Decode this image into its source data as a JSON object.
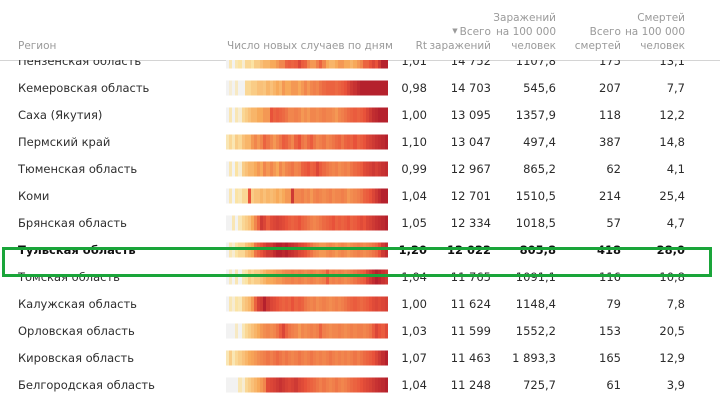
{
  "table": {
    "headers": {
      "region": "Регион",
      "daily": "Число новых случаев по дням",
      "rt": "Rt",
      "total_line1": "Всего",
      "total_line2": "заражений",
      "total_sort_icon": "sort-descending-icon",
      "per100_line1": "Заражений",
      "per100_line2": "на 100 000",
      "per100_line3": "человек",
      "deaths_line1": "Всего",
      "deaths_line2": "смертей",
      "dper100_line1": "Смертей",
      "dper100_line2": "на 100 000",
      "dper100_line3": "человек"
    },
    "highlight_color": "#1aa53a",
    "highlighted_row": "Тульская область"
  },
  "chart_data": {
    "type": "table",
    "title": "",
    "columns": [
      "Регион",
      "Число новых случаев по дням",
      "Rt",
      "Всего заражений",
      "Заражений на 100 000 человек",
      "Всего смертей",
      "Смертей на 100 000 человек"
    ],
    "sorted_by": "Всего заражений",
    "sort_order": "descending",
    "heatmap_scale": {
      "low": "#f2f2f2",
      "mid1": "#fbe3a4",
      "mid2": "#f7a95a",
      "mid3": "#e8523a",
      "high": "#a8152a"
    },
    "rows": [
      {
        "region": "Пензенская область",
        "rt": "1,01",
        "total": "14 752",
        "per100": "1107,8",
        "deaths": "175",
        "dper100": "13,1",
        "daily": [
          0,
          0.2,
          0,
          0.2,
          0.25,
          0.1,
          0.3,
          0.3,
          0.25,
          0.35,
          0.35,
          0.4,
          0.45,
          0.45,
          0.5,
          0.5,
          0.55,
          0.6,
          0.6,
          0.7,
          0.72,
          0.7,
          0.72,
          0.8,
          0.72,
          0.7,
          0.6,
          0.55,
          0.55,
          0.62,
          0.7,
          0.6,
          0.5,
          0.45,
          0.45,
          0.5,
          0.55,
          0.55,
          0.5,
          0.5,
          0.45,
          0.5,
          0.55,
          0.6,
          0.7,
          0.7,
          0.75,
          0.8,
          0.75,
          0.85,
          0.95,
          0.95
        ]
      },
      {
        "region": "Кемеровская область",
        "rt": "0,98",
        "total": "14 703",
        "per100": "545,6",
        "deaths": "207",
        "dper100": "7,7",
        "daily": [
          0,
          0.1,
          0,
          0.15,
          0,
          0,
          0.3,
          0.3,
          0.35,
          0.35,
          0.4,
          0.4,
          0.38,
          0.45,
          0.4,
          0.45,
          0.5,
          0.45,
          0.55,
          0.5,
          0.5,
          0.55,
          0.55,
          0.5,
          0.55,
          0.6,
          0.55,
          0.6,
          0.62,
          0.6,
          0.65,
          0.68,
          0.7,
          0.7,
          0.7,
          0.68,
          0.7,
          0.72,
          0.75,
          0.8,
          0.85,
          0.88,
          0.92,
          0.95,
          0.95,
          0.95,
          0.95,
          0.95,
          0.95,
          0.95,
          0.95,
          0.95
        ]
      },
      {
        "region": "Саха (Якутия)",
        "rt": "1,00",
        "total": "13 095",
        "per100": "1357,9",
        "deaths": "118",
        "dper100": "12,2",
        "daily": [
          0,
          0.2,
          0,
          0.2,
          0.1,
          0.3,
          0.35,
          0.4,
          0.45,
          0.45,
          0.5,
          0.5,
          0.55,
          0.55,
          0.75,
          0.7,
          0.72,
          0.7,
          0.68,
          0.65,
          0.6,
          0.6,
          0.62,
          0.6,
          0.55,
          0.58,
          0.55,
          0.6,
          0.6,
          0.58,
          0.6,
          0.62,
          0.6,
          0.6,
          0.58,
          0.55,
          0.6,
          0.62,
          0.65,
          0.68,
          0.7,
          0.72,
          0.7,
          0.72,
          0.75,
          0.8,
          0.85,
          0.9,
          0.92,
          0.95,
          0.95,
          0.95
        ]
      },
      {
        "region": "Пермский край",
        "rt": "1,10",
        "total": "13 047",
        "per100": "497,4",
        "deaths": "387",
        "dper100": "14,8",
        "daily": [
          0.2,
          0.3,
          0.2,
          0.35,
          0.3,
          0.4,
          0.45,
          0.45,
          0.55,
          0.6,
          0.55,
          0.6,
          0.7,
          0.65,
          0.6,
          0.55,
          0.6,
          0.65,
          0.72,
          0.7,
          0.65,
          0.6,
          0.7,
          0.75,
          0.65,
          0.62,
          0.68,
          0.72,
          0.65,
          0.6,
          0.62,
          0.65,
          0.6,
          0.62,
          0.65,
          0.68,
          0.7,
          0.65,
          0.7,
          0.72,
          0.7,
          0.75,
          0.7,
          0.72,
          0.75,
          0.8,
          0.82,
          0.85,
          0.88,
          0.9,
          0.92,
          0.95
        ]
      },
      {
        "region": "Тюменская область",
        "rt": "0,99",
        "total": "12 967",
        "per100": "865,2",
        "deaths": "62",
        "dper100": "4,1",
        "daily": [
          0,
          0.2,
          0,
          0.25,
          0.1,
          0.35,
          0.4,
          0.45,
          0.45,
          0.5,
          0.55,
          0.5,
          0.6,
          0.55,
          0.6,
          0.55,
          0.5,
          0.6,
          0.55,
          0.6,
          0.62,
          0.65,
          0.6,
          0.62,
          0.7,
          0.72,
          0.75,
          0.7,
          0.72,
          0.8,
          0.72,
          0.68,
          0.65,
          0.62,
          0.6,
          0.62,
          0.58,
          0.6,
          0.62,
          0.6,
          0.65,
          0.68,
          0.7,
          0.72,
          0.78,
          0.8,
          0.82,
          0.85,
          0.82,
          0.85,
          0.88,
          0.9
        ]
      },
      {
        "region": "Коми",
        "rt": "1,04",
        "total": "12 701",
        "per100": "1510,5",
        "deaths": "214",
        "dper100": "25,4",
        "daily": [
          0,
          0.2,
          0,
          0.25,
          0.2,
          0.3,
          0.3,
          0.75,
          0.35,
          0.4,
          0.4,
          0.45,
          0.4,
          0.45,
          0.42,
          0.45,
          0.5,
          0.45,
          0.5,
          0.55,
          0.55,
          0.85,
          0.6,
          0.6,
          0.62,
          0.58,
          0.6,
          0.55,
          0.6,
          0.62,
          0.6,
          0.58,
          0.6,
          0.62,
          0.58,
          0.6,
          0.6,
          0.62,
          0.6,
          0.55,
          0.58,
          0.6,
          0.62,
          0.65,
          0.7,
          0.72,
          0.75,
          0.8,
          0.85,
          0.9,
          0.95,
          0.95
        ]
      },
      {
        "region": "Брянская область",
        "rt": "1,05",
        "total": "12 334",
        "per100": "1018,5",
        "deaths": "57",
        "dper100": "4,7",
        "daily": [
          0,
          0,
          0.2,
          0,
          0.2,
          0.3,
          0.35,
          0.4,
          0.5,
          0.6,
          0.7,
          0.85,
          0.8,
          0.72,
          0.78,
          0.8,
          0.82,
          0.8,
          0.78,
          0.75,
          0.72,
          0.7,
          0.72,
          0.75,
          0.7,
          0.68,
          0.65,
          0.62,
          0.6,
          0.62,
          0.65,
          0.68,
          0.7,
          0.72,
          0.75,
          0.7,
          0.72,
          0.7,
          0.72,
          0.75,
          0.7,
          0.72,
          0.75,
          0.78,
          0.75,
          0.8,
          0.82,
          0.85,
          0.88,
          0.9,
          0.92,
          0.95
        ]
      },
      {
        "region": "Тульская область",
        "rt": "1,20",
        "total": "12 022",
        "per100": "805,8",
        "deaths": "418",
        "dper100": "28,0",
        "daily": [
          0,
          0.2,
          0.1,
          0.25,
          0.3,
          0.3,
          0.4,
          0.45,
          0.5,
          0.65,
          0.7,
          0.75,
          0.8,
          0.85,
          0.85,
          0.9,
          0.95,
          0.95,
          0.92,
          0.95,
          0.9,
          0.88,
          0.85,
          0.8,
          0.78,
          0.75,
          0.7,
          0.65,
          0.6,
          0.58,
          0.55,
          0.55,
          0.58,
          0.6,
          0.58,
          0.55,
          0.58,
          0.6,
          0.58,
          0.55,
          0.58,
          0.6,
          0.62,
          0.6,
          0.58,
          0.6,
          0.62,
          0.65,
          0.68,
          0.75,
          0.85,
          0.9
        ]
      },
      {
        "region": "Томская область",
        "rt": "1,04",
        "total": "11 765",
        "per100": "1091,1",
        "deaths": "116",
        "dper100": "10,8",
        "daily": [
          0,
          0.15,
          0,
          0.2,
          0,
          0.2,
          0.25,
          0.35,
          0.3,
          0.35,
          0.35,
          0.4,
          0.45,
          0.5,
          0.5,
          0.52,
          0.55,
          0.55,
          0.58,
          0.6,
          0.6,
          0.62,
          0.6,
          0.62,
          0.6,
          0.58,
          0.6,
          0.62,
          0.6,
          0.58,
          0.6,
          0.62,
          0.72,
          0.6,
          0.62,
          0.6,
          0.62,
          0.6,
          0.58,
          0.6,
          0.62,
          0.65,
          0.68,
          0.7,
          0.72,
          0.8,
          0.85,
          0.9,
          0.95,
          0.92,
          0.88,
          0.85
        ]
      },
      {
        "region": "Калужская область",
        "rt": "1,00",
        "total": "11 624",
        "per100": "1148,4",
        "deaths": "79",
        "dper100": "7,8",
        "daily": [
          0,
          0.2,
          0.1,
          0.25,
          0.2,
          0.35,
          0.4,
          0.45,
          0.55,
          0.7,
          0.82,
          0.85,
          0.95,
          0.85,
          0.8,
          0.78,
          0.75,
          0.72,
          0.7,
          0.72,
          0.7,
          0.75,
          0.7,
          0.72,
          0.7,
          0.65,
          0.62,
          0.6,
          0.62,
          0.58,
          0.6,
          0.62,
          0.6,
          0.58,
          0.6,
          0.62,
          0.6,
          0.62,
          0.65,
          0.68,
          0.7,
          0.72,
          0.7,
          0.68,
          0.7,
          0.72,
          0.75,
          0.78,
          0.8,
          0.78,
          0.8,
          0.82
        ]
      },
      {
        "region": "Орловская область",
        "rt": "1,03",
        "total": "11 599",
        "per100": "1552,2",
        "deaths": "153",
        "dper100": "20,5",
        "daily": [
          0,
          0,
          0,
          0.15,
          0,
          0.2,
          0.3,
          0.35,
          0.4,
          0.45,
          0.5,
          0.55,
          0.58,
          0.6,
          0.58,
          0.6,
          0.65,
          0.72,
          0.8,
          0.7,
          0.65,
          0.62,
          0.6,
          0.55,
          0.6,
          0.58,
          0.6,
          0.62,
          0.6,
          0.62,
          0.7,
          0.62,
          0.6,
          0.58,
          0.6,
          0.6,
          0.62,
          0.6,
          0.58,
          0.6,
          0.62,
          0.6,
          0.62,
          0.62,
          0.6,
          0.62,
          0.65,
          0.72,
          0.8,
          0.75,
          0.72,
          0.78
        ]
      },
      {
        "region": "Кировская область",
        "rt": "1,07",
        "total": "11 463",
        "per100": "1 893,3",
        "deaths": "165",
        "dper100": "12,9",
        "daily": [
          0.2,
          0.35,
          0.2,
          0.3,
          0.35,
          0.4,
          0.45,
          0.5,
          0.52,
          0.55,
          0.58,
          0.6,
          0.62,
          0.65,
          0.62,
          0.65,
          0.68,
          0.65,
          0.62,
          0.65,
          0.62,
          0.6,
          0.62,
          0.65,
          0.62,
          0.6,
          0.62,
          0.65,
          0.62,
          0.6,
          0.62,
          0.6,
          0.62,
          0.65,
          0.62,
          0.6,
          0.62,
          0.6,
          0.62,
          0.6,
          0.62,
          0.65,
          0.62,
          0.65,
          0.68,
          0.7,
          0.72,
          0.75,
          0.8,
          0.85,
          0.9,
          0.95
        ]
      },
      {
        "region": "Белгородская область",
        "rt": "1,04",
        "total": "11 248",
        "per100": "725,7",
        "deaths": "61",
        "dper100": "3,9",
        "daily": [
          0,
          0,
          0,
          0,
          0.2,
          0.1,
          0.3,
          0.35,
          0.4,
          0.45,
          0.5,
          0.55,
          0.6,
          0.78,
          0.8,
          0.82,
          0.85,
          0.88,
          0.85,
          0.82,
          0.8,
          0.82,
          0.85,
          0.8,
          0.78,
          0.75,
          0.72,
          0.7,
          0.68,
          0.65,
          0.62,
          0.65,
          0.62,
          0.6,
          0.62,
          0.65,
          0.62,
          0.6,
          0.62,
          0.65,
          0.68,
          0.7,
          0.72,
          0.75,
          0.78,
          0.8,
          0.82,
          0.85,
          0.88,
          0.9,
          0.92,
          0.95
        ]
      }
    ]
  }
}
